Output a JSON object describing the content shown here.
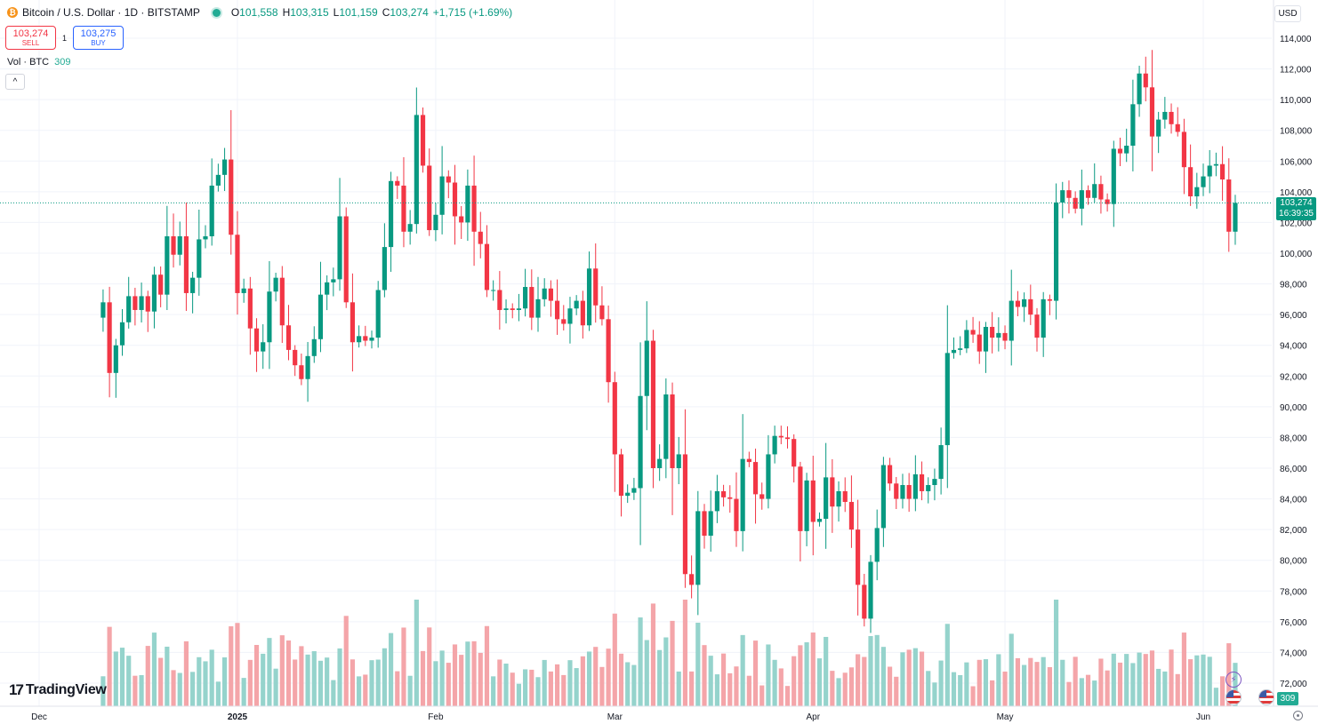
{
  "header": {
    "symbol_title": "Bitcoin / U.S. Dollar · 1D · BITSTAMP",
    "coin_symbol": "₿",
    "ohlc": {
      "open_label": "O",
      "open": "101,558",
      "high_label": "H",
      "high": "103,315",
      "low_label": "L",
      "low": "101,159",
      "close_label": "C",
      "close": "103,274",
      "change": "+1,715 (+1.69%)"
    }
  },
  "trade": {
    "sell_price": "103,274",
    "sell_label": "SELL",
    "spread": "1",
    "buy_price": "103,275",
    "buy_label": "BUY"
  },
  "volume_legend": {
    "label": "Vol · BTC",
    "value": "309"
  },
  "collapse_icon": "^",
  "currency": "USD",
  "last_price_tag": {
    "price": "103,274",
    "countdown": "16:39:35"
  },
  "volume_tag": "309",
  "logo_text": "TradingView",
  "logo_mark": "17",
  "icons": [
    "bitcoin-icon",
    "live-status-icon",
    "collapse-icon",
    "lightning-icon",
    "us-flag-icon",
    "settings-icon"
  ],
  "colors": {
    "up": "#089981",
    "down": "#f23645",
    "vol_up": "#95d3cc",
    "vol_down": "#f4a5a9",
    "grid": "#f0f3fa"
  },
  "chart_data": {
    "type": "candlestick",
    "y_axis": {
      "ylim": [
        71000,
        115000
      ],
      "tick_labels": [
        "114,000",
        "112,000",
        "110,000",
        "108,000",
        "106,000",
        "104,000",
        "102,000",
        "100,000",
        "98,000",
        "96,000",
        "94,000",
        "92,000",
        "90,000",
        "88,000",
        "86,000",
        "84,000",
        "82,000",
        "80,000",
        "78,000",
        "76,000",
        "74,000",
        "72,000"
      ],
      "tick_values": [
        114000,
        112000,
        110000,
        108000,
        106000,
        104000,
        102000,
        100000,
        98000,
        96000,
        94000,
        92000,
        90000,
        88000,
        86000,
        84000,
        82000,
        80000,
        78000,
        76000,
        74000,
        72000
      ]
    },
    "x_axis": {
      "tick_labels": [
        "Dec",
        "2025",
        "Feb",
        "Mar",
        "Apr",
        "May",
        "Jun"
      ],
      "tick_dates": [
        "2024-12-01",
        "2025-01-01",
        "2025-02-01",
        "2025-03-01",
        "2025-04-01",
        "2025-05-01",
        "2025-06-01"
      ],
      "last_date": "2025-06-06"
    },
    "last_price": 103274,
    "grid": true,
    "close": [
      96800,
      92200,
      94000,
      95500,
      97200,
      96300,
      97200,
      96200,
      98600,
      97300,
      101100,
      99900,
      101100,
      97400,
      98400,
      100900,
      101100,
      104400,
      105100,
      106100,
      101200,
      97400,
      97700,
      95100,
      93600,
      94200,
      97500,
      98400,
      95300,
      93700,
      92700,
      91800,
      93300,
      94400,
      97300,
      98100,
      98300,
      102400,
      96800,
      94200,
      94600,
      94300,
      94500,
      97600,
      100400,
      104700,
      104400,
      101400,
      101900,
      109000,
      105700,
      101500,
      102500,
      105000,
      104600,
      102400,
      102000,
      104400,
      101400,
      100600,
      97600,
      97600,
      96300,
      96400,
      96300,
      96400,
      97800,
      95800,
      97000,
      97700,
      96900,
      95700,
      95400,
      96400,
      96900,
      95300,
      99000,
      96600,
      95700,
      91600,
      86900,
      84200,
      84400,
      84700,
      90700,
      94300,
      86000,
      86600,
      90800,
      86000,
      86900,
      79100,
      78400,
      83200,
      81600,
      83200,
      84500,
      84100,
      84000,
      81900,
      86600,
      86400,
      84300,
      84000,
      86900,
      88100,
      88000,
      87900,
      86100,
      81900,
      85200,
      82500,
      82700,
      85400,
      83500,
      84500,
      83800,
      82000,
      78400,
      76200,
      79900,
      82100,
      86200,
      85000,
      84000,
      84900,
      84000,
      85600,
      84500,
      84900,
      85300,
      87500,
      93500,
      93700,
      93800,
      95000,
      94700,
      93600,
      95200,
      94500,
      94800,
      94300,
      96900,
      96500,
      97000,
      96000,
      94500,
      97000,
      96900,
      103300,
      104100,
      103600,
      102900,
      104100,
      103600,
      104500,
      103500,
      103200,
      106800,
      106500,
      107000,
      109700,
      111700,
      110800,
      107600,
      108700,
      109200,
      108400,
      107900,
      105600,
      103700,
      104300,
      105000,
      105700,
      105800,
      104800,
      101400,
      103274
    ],
    "volume_shown": "309"
  }
}
